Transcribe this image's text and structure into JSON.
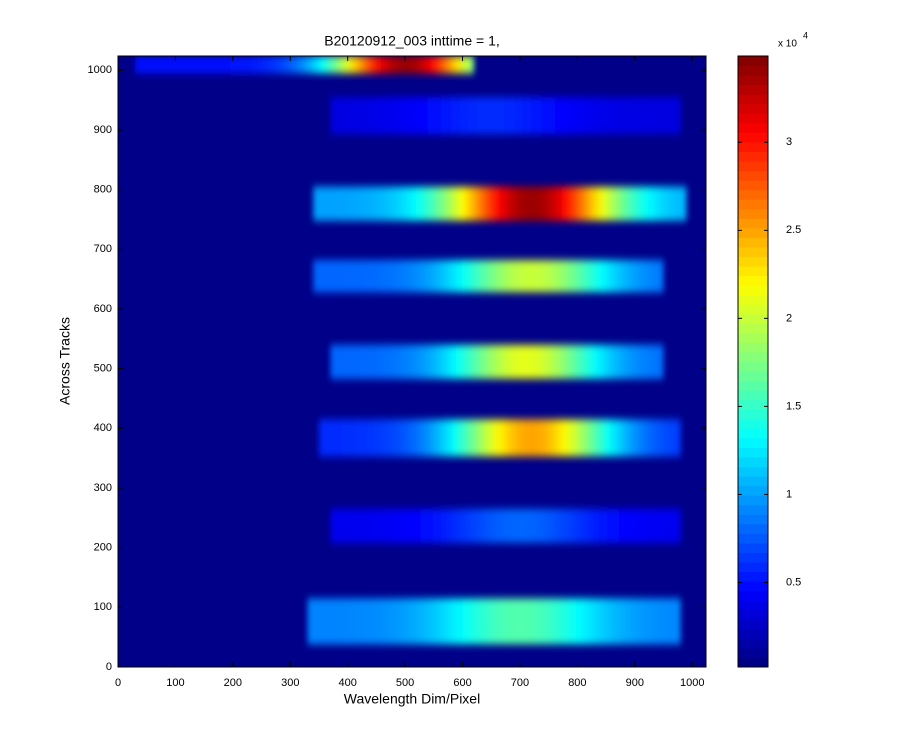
{
  "chart_data": {
    "type": "heatmap",
    "title": "B20120912_003 inttime = 1,",
    "xlabel": "Wavelength Dim/Pixel",
    "ylabel": "Across Tracks",
    "xlim": [
      0,
      1024
    ],
    "ylim": [
      0,
      1024
    ],
    "xticks": [
      0,
      100,
      200,
      300,
      400,
      500,
      600,
      700,
      800,
      900,
      1000
    ],
    "yticks": [
      0,
      100,
      200,
      300,
      400,
      500,
      600,
      700,
      800,
      900,
      1000
    ],
    "colormap": "jet",
    "clim": [
      0.02,
      3.49
    ],
    "cticks": [
      0.5,
      1,
      1.5,
      2,
      2.5,
      3
    ],
    "cscale_base": "x 10",
    "cscale_exponent": "4",
    "background_value": 0.05,
    "bands": [
      {
        "x_range": [
          30,
          620
        ],
        "y_range": [
          995,
          1024
        ],
        "peak_x": 500,
        "peak": 3.4,
        "edge": 0.5
      },
      {
        "x_range": [
          370,
          980
        ],
        "y_range": [
          893,
          955
        ],
        "peak_x": 650,
        "peak": 0.6,
        "edge": 0.35
      },
      {
        "x_range": [
          340,
          990
        ],
        "y_range": [
          748,
          805
        ],
        "peak_x": 720,
        "peak": 3.4,
        "edge": 1.0
      },
      {
        "x_range": [
          340,
          950
        ],
        "y_range": [
          628,
          682
        ],
        "peak_x": 720,
        "peak": 2.0,
        "edge": 0.8
      },
      {
        "x_range": [
          370,
          950
        ],
        "y_range": [
          483,
          540
        ],
        "peak_x": 710,
        "peak": 2.1,
        "edge": 0.8
      },
      {
        "x_range": [
          350,
          980
        ],
        "y_range": [
          353,
          415
        ],
        "peak_x": 720,
        "peak": 2.5,
        "edge": 0.6
      },
      {
        "x_range": [
          370,
          980
        ],
        "y_range": [
          208,
          265
        ],
        "peak_x": 700,
        "peak": 0.8,
        "edge": 0.4
      },
      {
        "x_range": [
          330,
          980
        ],
        "y_range": [
          38,
          115
        ],
        "peak_x": 700,
        "peak": 1.6,
        "edge": 0.9
      }
    ]
  }
}
